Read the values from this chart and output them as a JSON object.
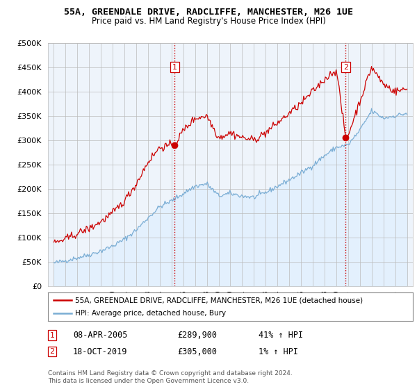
{
  "title": "55A, GREENDALE DRIVE, RADCLIFFE, MANCHESTER, M26 1UE",
  "subtitle": "Price paid vs. HM Land Registry's House Price Index (HPI)",
  "legend_line1": "55A, GREENDALE DRIVE, RADCLIFFE, MANCHESTER, M26 1UE (detached house)",
  "legend_line2": "HPI: Average price, detached house, Bury",
  "annotation1": {
    "num": "1",
    "date": "08-APR-2005",
    "price": "£289,900",
    "pct": "41% ↑ HPI"
  },
  "annotation2": {
    "num": "2",
    "date": "18-OCT-2019",
    "price": "£305,000",
    "pct": "1% ↑ HPI"
  },
  "footer1": "Contains HM Land Registry data © Crown copyright and database right 2024.",
  "footer2": "This data is licensed under the Open Government Licence v3.0.",
  "red_color": "#cc0000",
  "blue_color": "#7aadd4",
  "blue_fill": "#ddeeff",
  "vline_color": "#cc0000",
  "background_color": "#ffffff",
  "plot_bg_color": "#eef4fb",
  "ylim": [
    0,
    500000
  ],
  "yticks": [
    0,
    50000,
    100000,
    150000,
    200000,
    250000,
    300000,
    350000,
    400000,
    450000,
    500000
  ],
  "sale1_year": 2005.27,
  "sale1_price": 289900,
  "sale2_year": 2019.79,
  "sale2_price": 305000,
  "hpi_anchors_years": [
    1995.0,
    1996.0,
    1997.0,
    1998.0,
    1999.0,
    2000.0,
    2001.0,
    2002.0,
    2003.0,
    2004.0,
    2005.0,
    2006.0,
    2007.0,
    2008.0,
    2009.0,
    2010.0,
    2011.0,
    2012.0,
    2013.0,
    2014.0,
    2015.0,
    2016.0,
    2017.0,
    2018.0,
    2019.0,
    2020.0,
    2021.0,
    2022.0,
    2023.0,
    2024.0,
    2025.0
  ],
  "hpi_anchors_vals": [
    47000,
    52000,
    58000,
    64000,
    72000,
    82000,
    96000,
    115000,
    140000,
    163000,
    175000,
    190000,
    205000,
    210000,
    185000,
    190000,
    185000,
    182000,
    192000,
    205000,
    218000,
    232000,
    248000,
    268000,
    285000,
    290000,
    320000,
    360000,
    345000,
    350000,
    355000
  ],
  "red_anchors_years": [
    1995.0,
    1996.0,
    1997.0,
    1998.0,
    1999.0,
    2000.0,
    2001.0,
    2002.0,
    2003.0,
    2004.0,
    2005.27,
    2006.0,
    2007.0,
    2008.0,
    2009.0,
    2010.0,
    2011.0,
    2012.0,
    2013.0,
    2014.0,
    2015.0,
    2016.0,
    2017.0,
    2018.0,
    2019.0,
    2019.79,
    2020.0,
    2021.0,
    2022.0,
    2023.0,
    2024.0,
    2025.0
  ],
  "red_anchors_vals": [
    88000,
    96000,
    108000,
    118000,
    132000,
    150000,
    175000,
    210000,
    255000,
    285000,
    289900,
    320000,
    345000,
    350000,
    305000,
    315000,
    305000,
    300000,
    315000,
    335000,
    355000,
    375000,
    400000,
    425000,
    445000,
    305000,
    310000,
    380000,
    450000,
    415000,
    400000,
    405000
  ]
}
